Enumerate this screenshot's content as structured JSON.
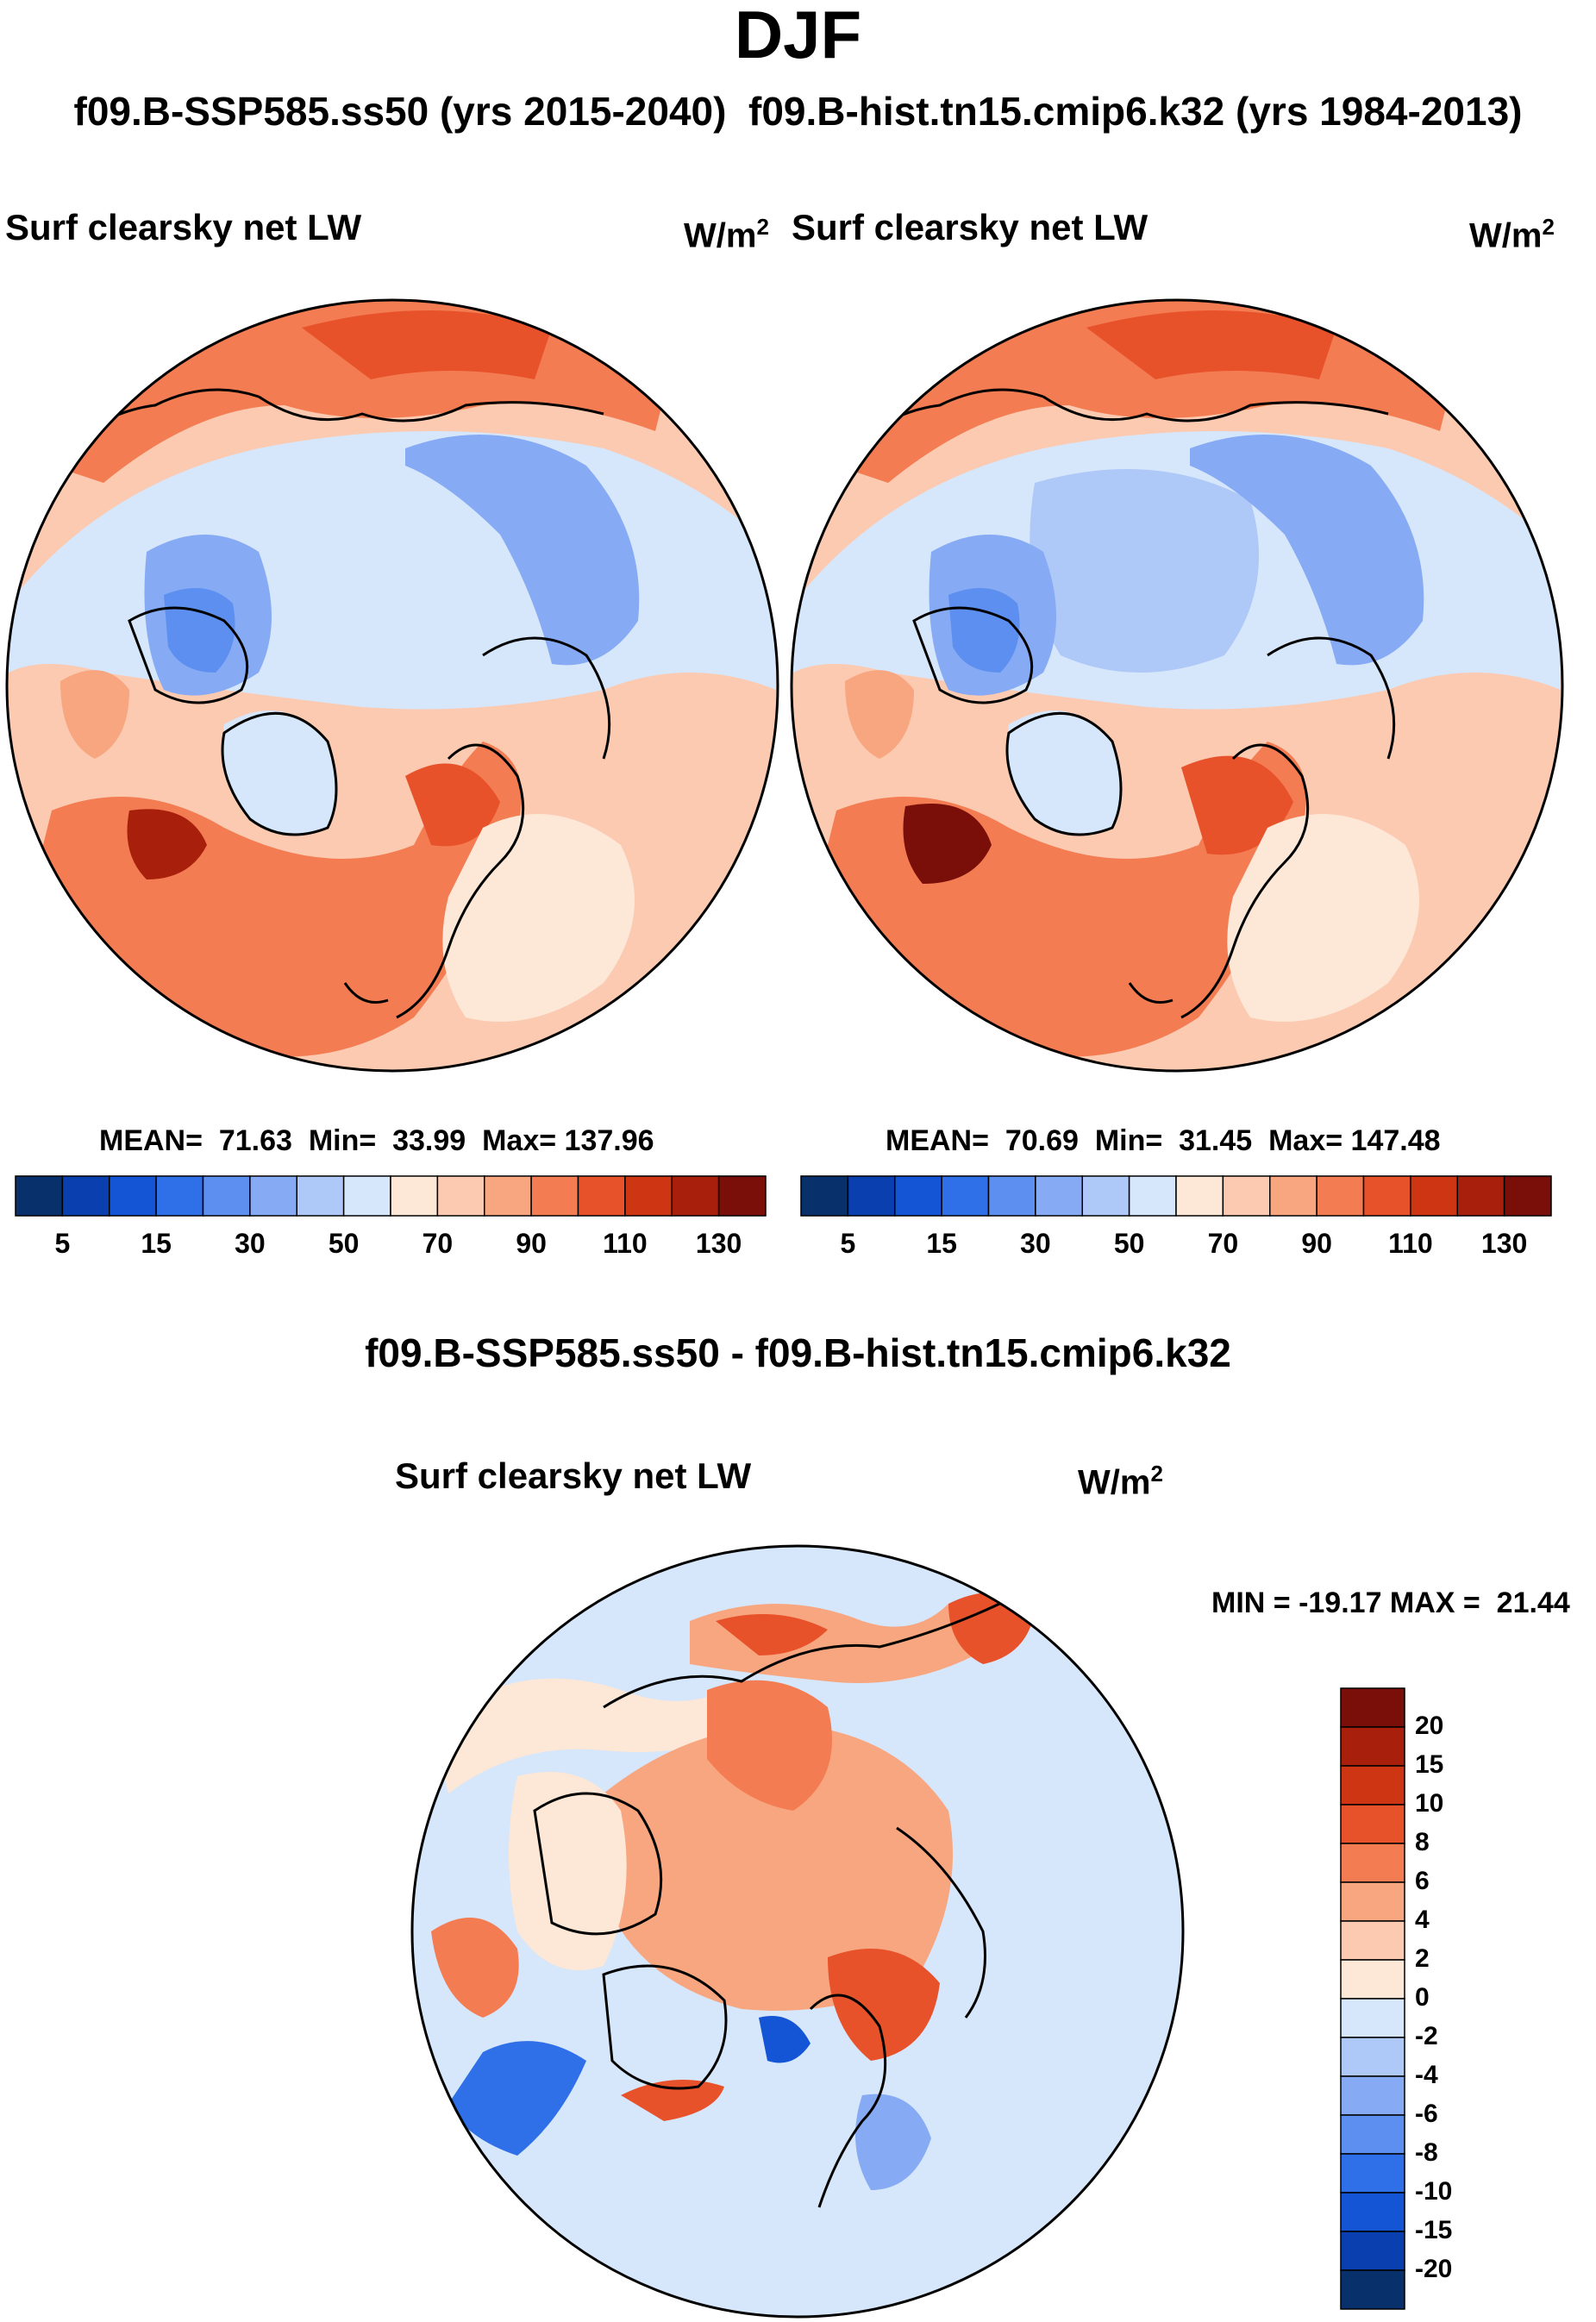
{
  "header": {
    "season": "DJF",
    "subtitle_left": "f09.B-SSP585.ss50 (yrs 2015-2040)",
    "subtitle_right": "f09.B-hist.tn15.cmip6.k32 (yrs 1984-2013)"
  },
  "panels": {
    "left": {
      "title": "Surf clearsky net LW",
      "units_base": "W/m",
      "units_exp": "2",
      "stats": "MEAN=  71.63  Min=  33.99  Max= 137.96"
    },
    "right": {
      "title": "Surf clearsky net LW",
      "units_base": "W/m",
      "units_exp": "2",
      "stats": "MEAN=  70.69  Min=  31.45  Max= 147.48"
    },
    "diff": {
      "header": "f09.B-SSP585.ss50 - f09.B-hist.tn15.cmip6.k32",
      "title": "Surf clearsky net LW",
      "units_base": "W/m",
      "units_exp": "2",
      "minmax": "MIN = -19.17 MAX =  21.44"
    }
  },
  "chart_data": [
    {
      "type": "heatmap",
      "projection": "north polar stereographic",
      "title": "Surf clearsky net LW",
      "units": "W/m2",
      "period": "f09.B-SSP585.ss50 (yrs 2015-2040)",
      "mean": 71.63,
      "min": 33.99,
      "max": 137.96,
      "colorbar": {
        "orientation": "horizontal",
        "tick_labels": [
          "5",
          "15",
          "30",
          "50",
          "70",
          "90",
          "110",
          "130"
        ],
        "colors": [
          "#08306b",
          "#0a3fb0",
          "#1455d6",
          "#2f6fe8",
          "#5c8fef",
          "#86aaf3",
          "#aec8f7",
          "#d6e6fb",
          "#fde7d6",
          "#fbcab1",
          "#f8a67f",
          "#f47c52",
          "#e8522b",
          "#cd3513",
          "#a8200b",
          "#7a0f0a"
        ]
      }
    },
    {
      "type": "heatmap",
      "projection": "north polar stereographic",
      "title": "Surf clearsky net LW",
      "units": "W/m2",
      "period": "f09.B-hist.tn15.cmip6.k32 (yrs 1984-2013)",
      "mean": 70.69,
      "min": 31.45,
      "max": 147.48,
      "colorbar": {
        "orientation": "horizontal",
        "tick_labels": [
          "5",
          "15",
          "30",
          "50",
          "70",
          "90",
          "110",
          "130"
        ],
        "colors": [
          "#08306b",
          "#0a3fb0",
          "#1455d6",
          "#2f6fe8",
          "#5c8fef",
          "#86aaf3",
          "#aec8f7",
          "#d6e6fb",
          "#fde7d6",
          "#fbcab1",
          "#f8a67f",
          "#f47c52",
          "#e8522b",
          "#cd3513",
          "#a8200b",
          "#7a0f0a"
        ]
      }
    },
    {
      "type": "heatmap",
      "projection": "north polar stereographic",
      "title": "Surf clearsky net LW",
      "units": "W/m2",
      "difference": "f09.B-SSP585.ss50 - f09.B-hist.tn15.cmip6.k32",
      "min": -19.17,
      "max": 21.44,
      "colorbar": {
        "orientation": "vertical",
        "tick_labels": [
          "20",
          "15",
          "10",
          "8",
          "6",
          "4",
          "2",
          "0",
          "-2",
          "-4",
          "-6",
          "-8",
          "-10",
          "-15",
          "-20"
        ],
        "colors": [
          "#7a0f0a",
          "#a8200b",
          "#cd3513",
          "#e8522b",
          "#f47c52",
          "#f8a67f",
          "#fbcab1",
          "#fde7d6",
          "#d6e6fb",
          "#aec8f7",
          "#86aaf3",
          "#5c8fef",
          "#2f6fe8",
          "#1455d6",
          "#0a3fb0",
          "#08306b"
        ]
      }
    }
  ]
}
